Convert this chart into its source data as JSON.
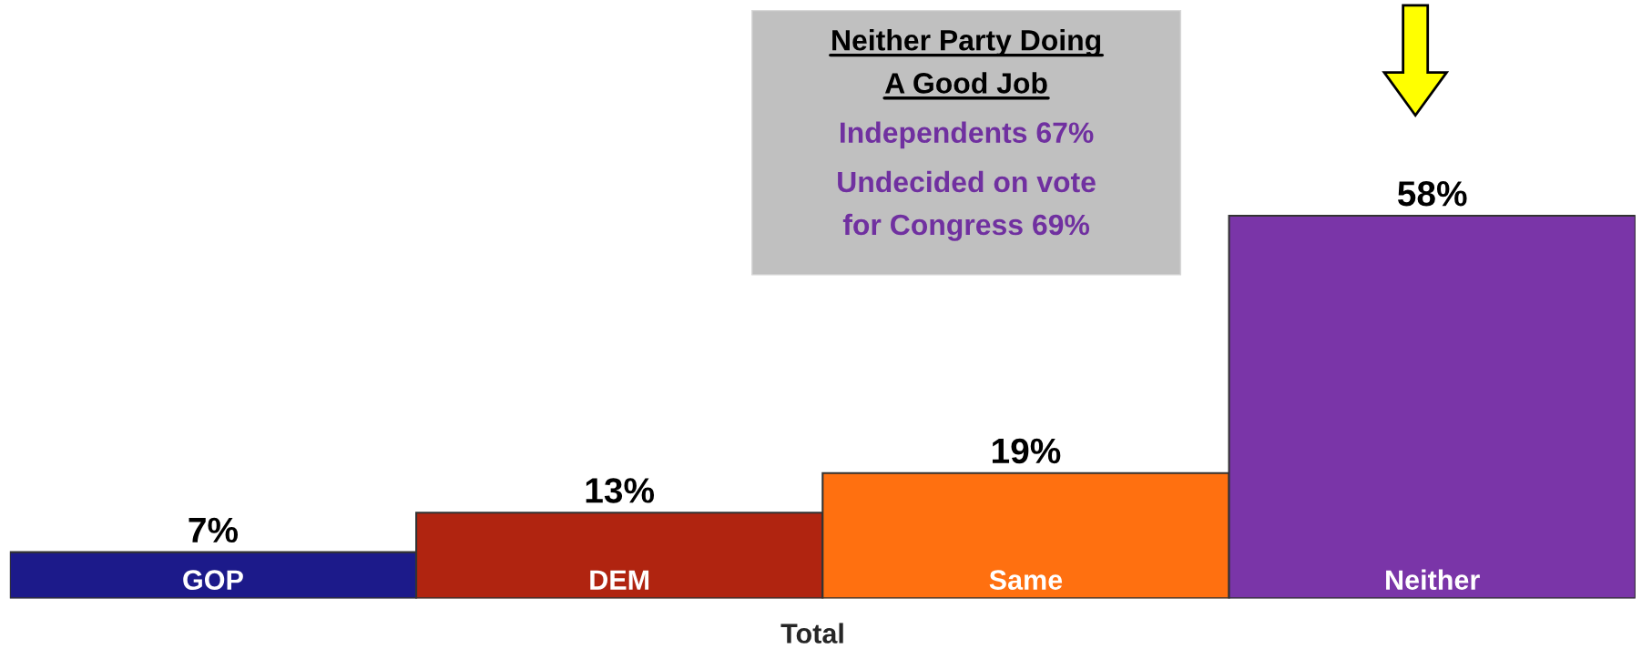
{
  "chart_data": {
    "type": "bar",
    "categories": [
      "GOP",
      "DEM",
      "Same",
      "Neither"
    ],
    "values": [
      7,
      13,
      19,
      58
    ],
    "colors": [
      "#1c1a8a",
      "#b02410",
      "#ff7010",
      "#7a35a8"
    ],
    "value_labels": [
      "7%",
      "13%",
      "19%",
      "58%"
    ],
    "xlabel": "Total",
    "annotations": [
      "Neither Party Doing\nA Good Job",
      "Independents 67%",
      "Undecided on vote\nfor Congress 69%"
    ],
    "legend": false
  }
}
